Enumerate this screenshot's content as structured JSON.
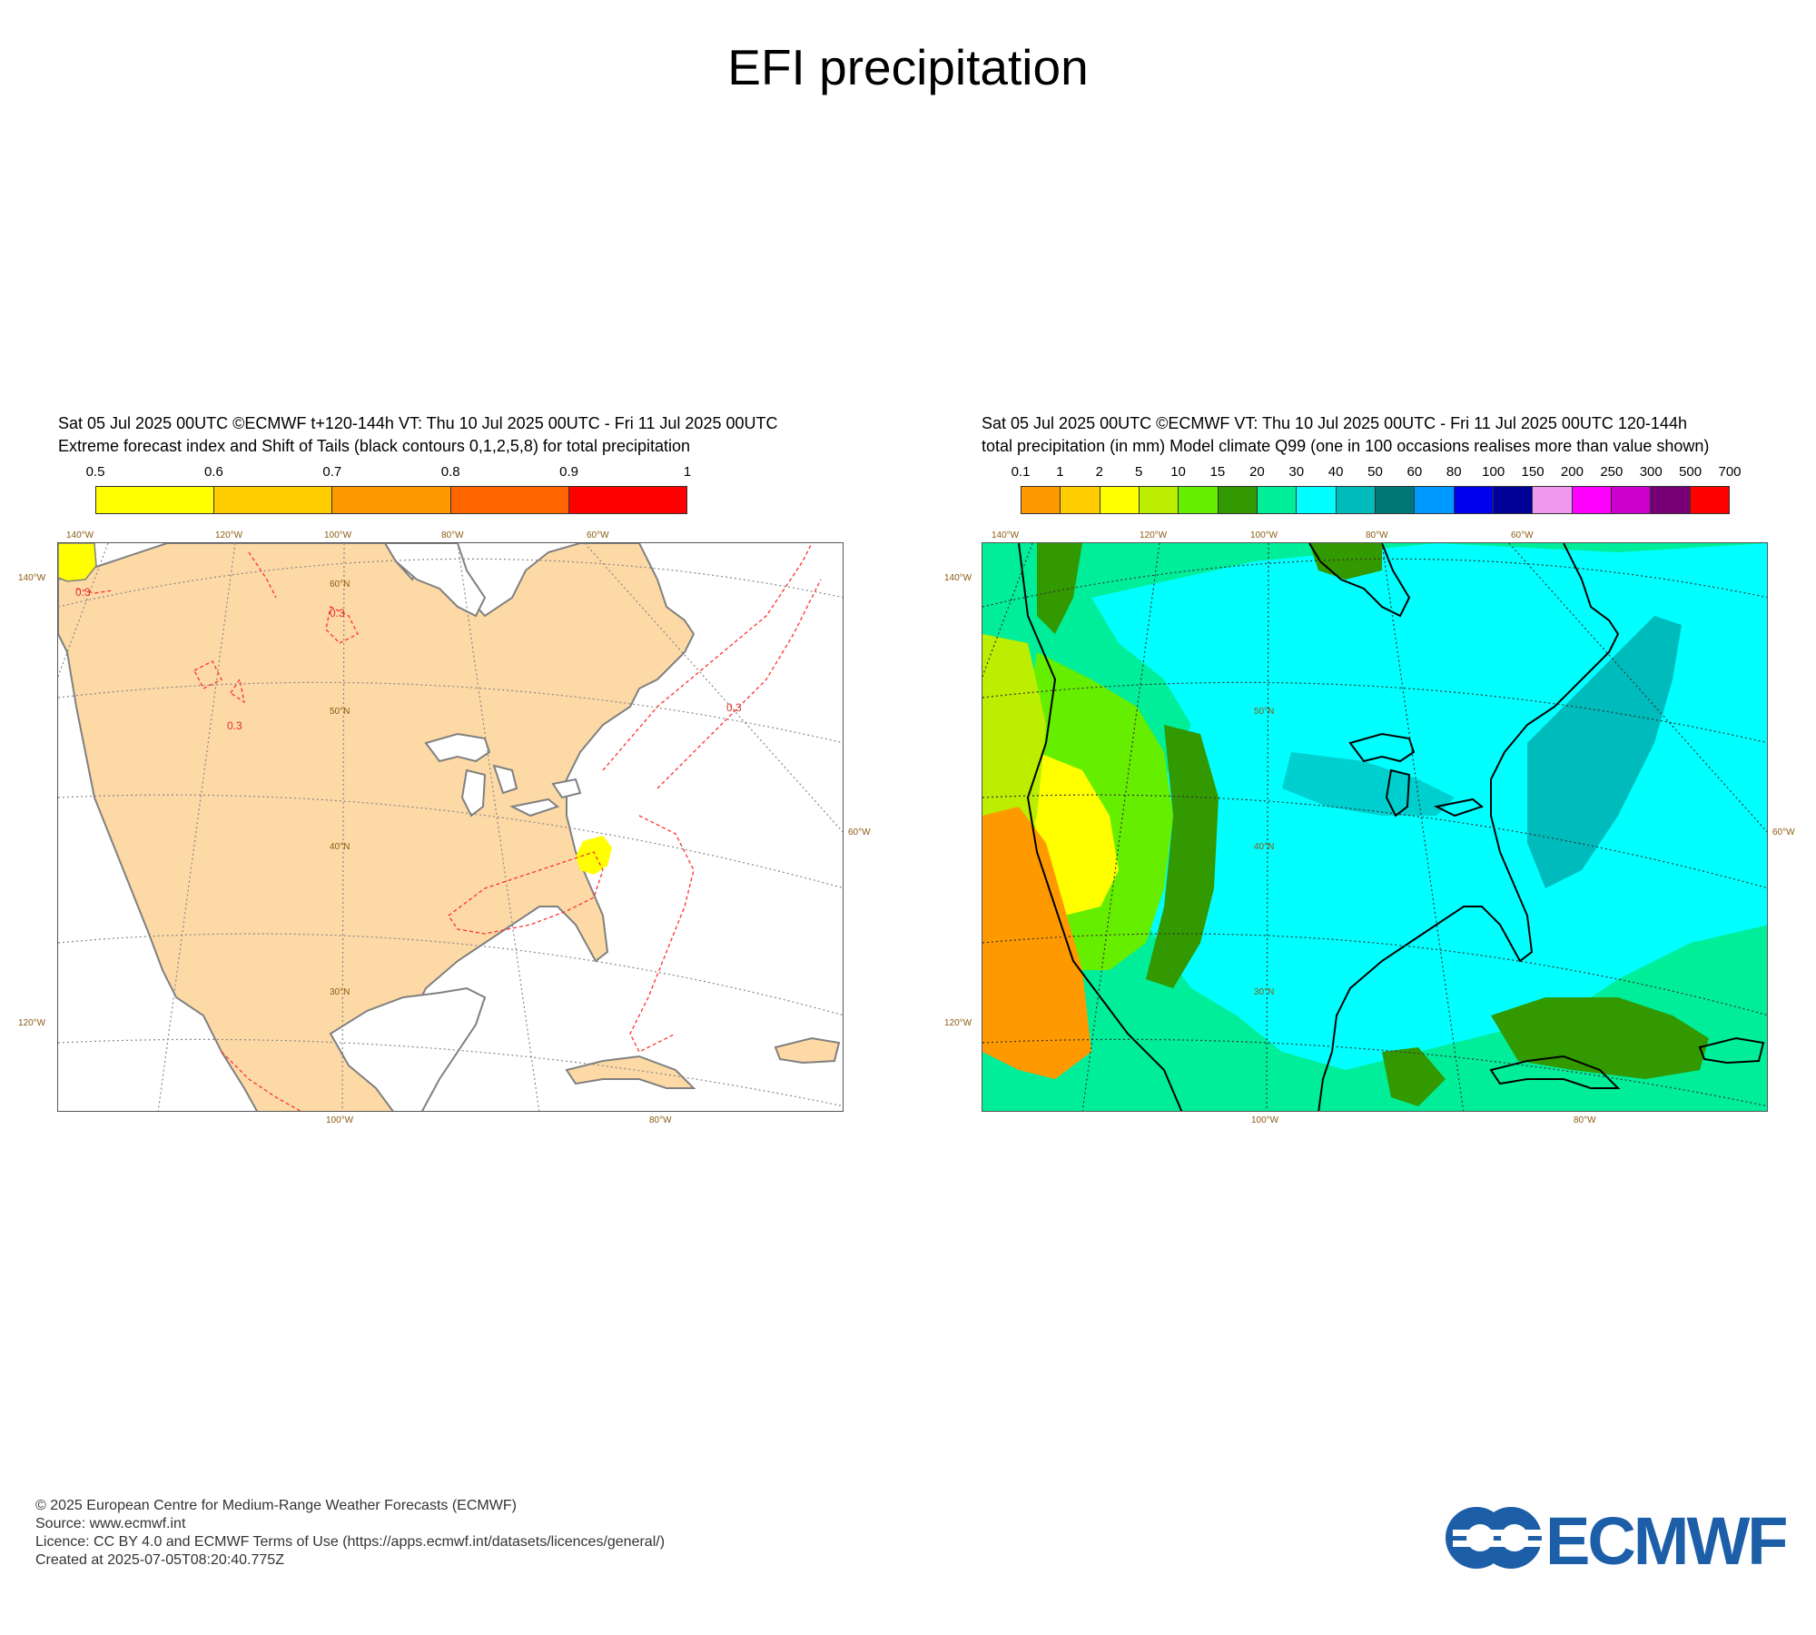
{
  "title": "EFI precipitation",
  "panels": [
    {
      "header_line1": "Sat 05 Jul 2025 00UTC ©ECMWF t+120-144h  VT: Thu 10 Jul 2025 00UTC - Fri 11 Jul 2025 00UTC",
      "header_line2": "Extreme forecast index and Shift of Tails (black contours 0,1,2,5,8) for total precipitation",
      "colorbar": {
        "labels": [
          "0.5",
          "0.6",
          "0.7",
          "0.8",
          "0.9",
          "1"
        ],
        "colors": [
          "#ffff00",
          "#ffcc00",
          "#ff9900",
          "#ff6600",
          "#ff0000"
        ]
      },
      "top_lon_labels": [
        "140°W",
        "120°W",
        "100°W",
        "80°W",
        "60°W"
      ],
      "bottom_lon_labels": [
        "100°W",
        "80°W"
      ],
      "left_labels": [
        "140°W",
        "120°W"
      ],
      "right_label": "60°W",
      "lat_labels": [
        "60°N",
        "50°N",
        "40°N",
        "30°N"
      ],
      "contour_label": "0.3",
      "land_color": "#fdd9a6",
      "contour_color": "#ff2020"
    },
    {
      "header_line1": "Sat 05 Jul 2025 00UTC ©ECMWF VT: Thu 10 Jul 2025 00UTC - Fri 11 Jul 2025 00UTC   120-144h",
      "header_line2": "total precipitation (in mm)  Model climate Q99 (one in 100 occasions realises more than value shown)",
      "colorbar": {
        "labels": [
          "0.1",
          "1",
          "2",
          "5",
          "10",
          "15",
          "20",
          "30",
          "40",
          "50",
          "60",
          "80",
          "100",
          "150",
          "200",
          "250",
          "300",
          "500",
          "700"
        ],
        "colors": [
          "#ff9900",
          "#ffcc00",
          "#ffff00",
          "#bbee00",
          "#66ee00",
          "#339900",
          "#00ee99",
          "#00ffff",
          "#00bbbb",
          "#007777",
          "#0099ff",
          "#0000ee",
          "#000099",
          "#ee99ee",
          "#ff00ff",
          "#cc00cc",
          "#770077",
          "#ff0000"
        ]
      },
      "top_lon_labels": [
        "140°W",
        "120°W",
        "100°W",
        "80°W",
        "60°W"
      ],
      "bottom_lon_labels": [
        "100°W",
        "80°W"
      ],
      "left_labels": [
        "140°W",
        "120°W"
      ],
      "right_label": "60°W",
      "lat_labels": [
        "50°N",
        "40°N",
        "30°N"
      ]
    }
  ],
  "footer": {
    "line1": "© 2025 European Centre for Medium-Range Weather Forecasts (ECMWF)",
    "line2": "Source: www.ecmwf.int",
    "line3": "Licence: CC BY 4.0 and ECMWF Terms of Use (https://apps.ecmwf.int/datasets/licences/general/)",
    "line4": "Created at 2025-07-05T08:20:40.775Z"
  },
  "logo_text": "ECMWF",
  "logo_color": "#1d5ea8"
}
